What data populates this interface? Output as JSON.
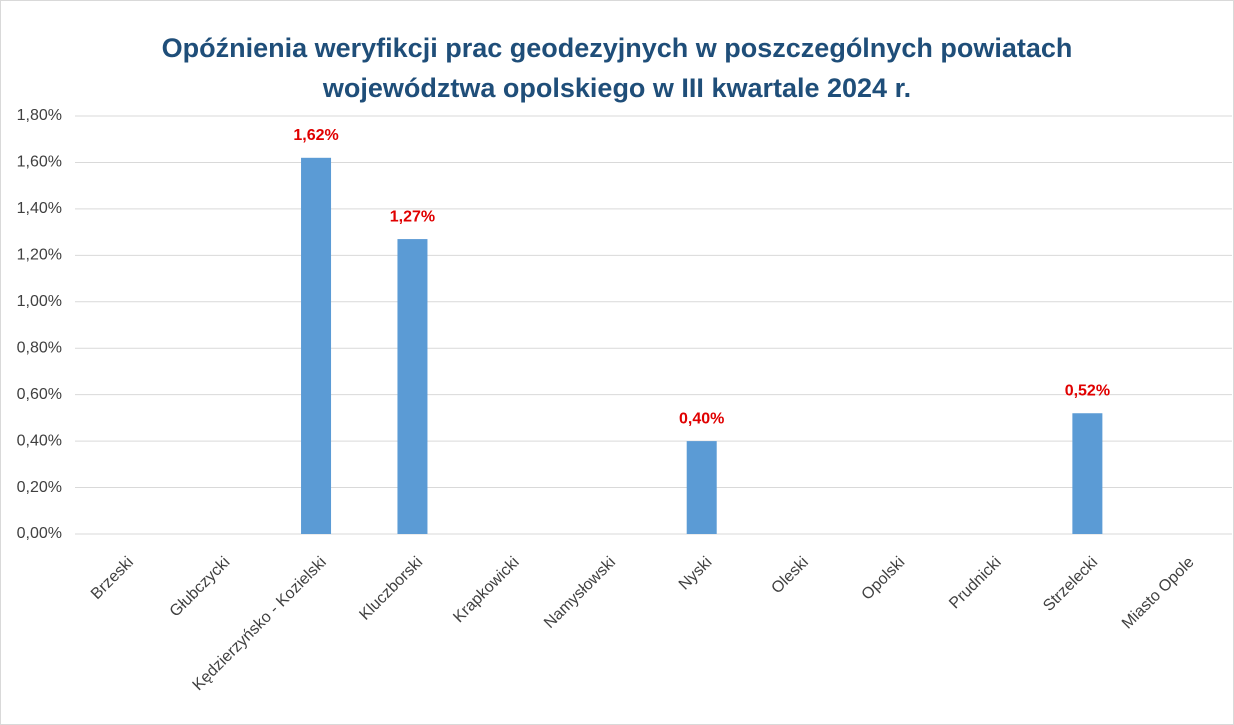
{
  "chart_data": {
    "type": "bar",
    "title": [
      "Opóźnienia weryfikcji prac geodezyjnych w poszczególnych powiatach",
      "województwa opolskiego w III kwartale 2024 r."
    ],
    "categories": [
      "Brzeski",
      "Głubczycki",
      "Kędzierzyńsko - Kozielski",
      "Kluczborski",
      "Krapkowicki",
      "Namysłowski",
      "Nyski",
      "Oleski",
      "Opolski",
      "Prudnicki",
      "Strzelecki",
      "Miasto Opole"
    ],
    "values": [
      0,
      0,
      1.62,
      1.27,
      0,
      0,
      0.4,
      0,
      0,
      0,
      0.52,
      0
    ],
    "value_labels": [
      null,
      null,
      "1,62%",
      "1,27%",
      null,
      null,
      "0,40%",
      null,
      null,
      null,
      "0,52%",
      null
    ],
    "color": "#5b9bd5",
    "ylim": [
      0,
      1.8
    ],
    "yticks": [
      {
        "value": 0,
        "label": "0,00%"
      },
      {
        "value": 0.2,
        "label": "0,20%"
      },
      {
        "value": 0.4,
        "label": "0,40%"
      },
      {
        "value": 0.6,
        "label": "0,60%"
      },
      {
        "value": 0.8,
        "label": "0,80%"
      },
      {
        "value": 1.0,
        "label": "1,00%"
      },
      {
        "value": 1.2,
        "label": "1,20%"
      },
      {
        "value": 1.4,
        "label": "1,40%"
      },
      {
        "value": 1.6,
        "label": "1,60%"
      },
      {
        "value": 1.8,
        "label": "1,80%"
      }
    ],
    "grid": true
  }
}
